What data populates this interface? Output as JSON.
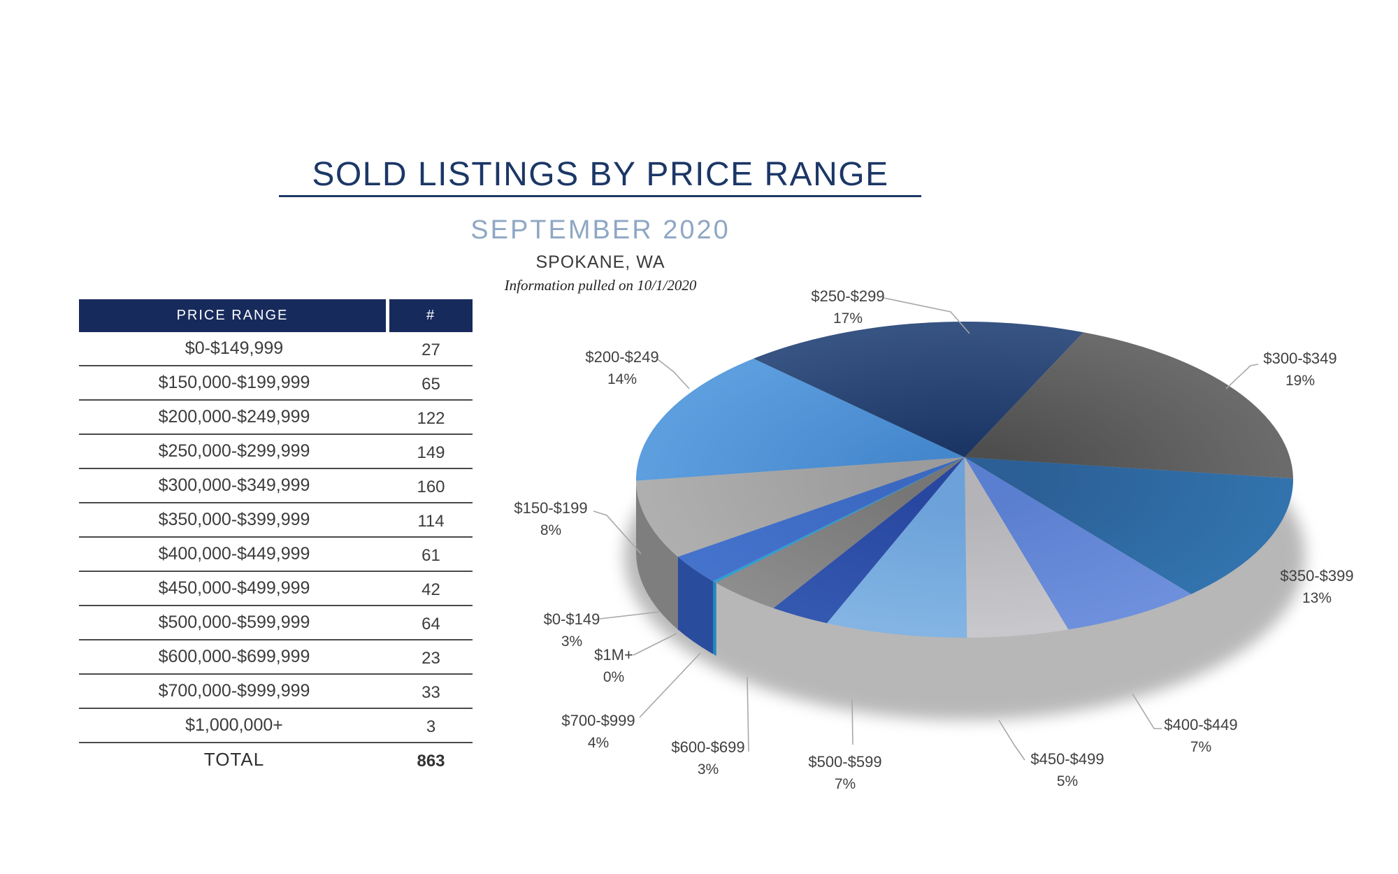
{
  "page": {
    "title": "SOLD LISTINGS BY PRICE RANGE",
    "subtitle": "SEPTEMBER 2020",
    "location": "SPOKANE, WA",
    "note": "Information pulled on 10/1/2020"
  },
  "table": {
    "headers": [
      "PRICE RANGE",
      "#"
    ],
    "rows": [
      [
        "$0-$149,999",
        "27"
      ],
      [
        "$150,000-$199,999",
        "65"
      ],
      [
        "$200,000-$249,999",
        "122"
      ],
      [
        "$250,000-$299,999",
        "149"
      ],
      [
        "$300,000-$349,999",
        "160"
      ],
      [
        "$350,000-$399,999",
        "114"
      ],
      [
        "$400,000-$449,999",
        "61"
      ],
      [
        "$450,000-$499,999",
        "42"
      ],
      [
        "$500,000-$599,999",
        "64"
      ],
      [
        "$600,000-$699,999",
        "23"
      ],
      [
        "$700,000-$999,999",
        "33"
      ],
      [
        "$1,000,000+",
        "3"
      ]
    ],
    "total_label": "TOTAL",
    "total_value": "863"
  },
  "chart_data": {
    "type": "pie",
    "style": "3d",
    "title": "SOLD LISTINGS BY PRICE RANGE",
    "subtitle": "SEPTEMBER 2020",
    "location": "SPOKANE, WA",
    "note": "Information pulled on 10/1/2020",
    "total": 863,
    "start_angle_deg": 230,
    "direction": "clockwise",
    "labels_position": "outside",
    "legend": false,
    "slices": [
      {
        "label": "$0-$149",
        "pct": 3,
        "pct_label": "3%",
        "count": 27,
        "color": "#3B68C0",
        "color_outer": "#4573CC",
        "side_color": "#2A4C9C"
      },
      {
        "label": "$150-$199",
        "pct": 8,
        "pct_label": "8%",
        "count": 65,
        "color": "#9B9B9B",
        "color_outer": "#AFAFAF",
        "side_color": "#7E7E7E"
      },
      {
        "label": "$200-$249",
        "pct": 14,
        "pct_label": "14%",
        "count": 122,
        "color": "#4587CC",
        "color_outer": "#5C9EDE",
        "side_color": "#39709F"
      },
      {
        "label": "$250-$299",
        "pct": 17,
        "pct_label": "17%",
        "count": 149,
        "color": "#1B3665",
        "color_outer": "#375382",
        "side_color": "#12264C"
      },
      {
        "label": "$300-$349",
        "pct": 19,
        "pct_label": "19%",
        "count": 160,
        "color": "#4E4E4E",
        "color_outer": "#6B6B6B",
        "side_color": "#3B3B3B"
      },
      {
        "label": "$350-$399",
        "pct": 13,
        "pct_label": "13%",
        "count": 114,
        "color": "#2B5F95",
        "color_outer": "#3273AD",
        "side_color": "#15294B"
      },
      {
        "label": "$400-$449",
        "pct": 7,
        "pct_label": "7%",
        "count": 61,
        "color": "#5B7FD0",
        "color_outer": "#6E90DC",
        "side_color": "#273D6E"
      },
      {
        "label": "$450-$499",
        "pct": 5,
        "pct_label": "5%",
        "count": 42,
        "color": "#B4B4B8",
        "color_outer": "#C8C8CC",
        "side_color": "#54545A"
      },
      {
        "label": "$500-$599",
        "pct": 7,
        "pct_label": "7%",
        "count": 64,
        "color": "#6CA2D9",
        "color_outer": "#83B4E4",
        "side_color": "#3E6D99"
      },
      {
        "label": "$600-$699",
        "pct": 3,
        "pct_label": "3%",
        "count": 23,
        "color": "#2847A0",
        "color_outer": "#3458B0",
        "side_color": "#1E366F"
      },
      {
        "label": "$700-$999",
        "pct": 4,
        "pct_label": "4%",
        "count": 33,
        "color": "#767676",
        "color_outer": "#8D8D8D",
        "side_color": "#4E4E4E"
      },
      {
        "label": "$1M+",
        "pct": 0,
        "pct_label": "0%",
        "count": 3,
        "color": "#2E9FD9",
        "color_outer": "#2E9FD9",
        "side_color": "#2187BE"
      }
    ]
  },
  "colors": {
    "title_navy": "#1C3766",
    "subtitle_blue": "#8FA7C4",
    "table_header_navy": "#172A5C",
    "table_text": "#3C3C3C",
    "row_rule": "#4A4A4A",
    "label_text": "#3F3F3F",
    "leader_line": "#A8A8A8",
    "background": "#FFFFFF"
  }
}
